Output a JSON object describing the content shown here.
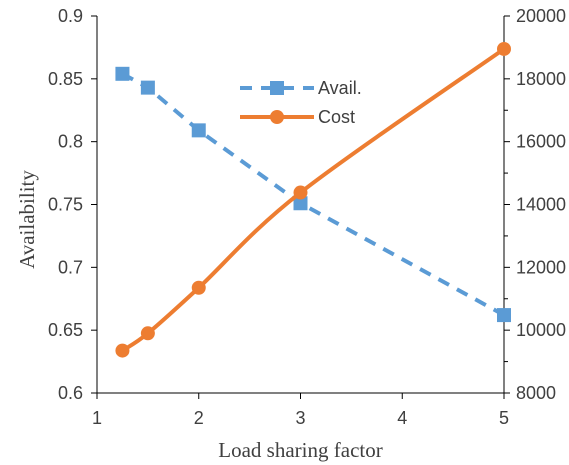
{
  "chart_data": {
    "type": "line",
    "xlabel": "Load sharing factor",
    "ylabel": "Availability",
    "ylabel_right": "",
    "x_ticks": [
      "1",
      "2",
      "3",
      "4",
      "5"
    ],
    "y_ticks": [
      "0.6",
      "0.65",
      "0.7",
      "0.75",
      "0.8",
      "0.85",
      "0.9"
    ],
    "y2_ticks": [
      "8000",
      "10000",
      "12000",
      "14000",
      "16000",
      "18000",
      "20000"
    ],
    "xlim": [
      1,
      5
    ],
    "ylim": [
      0.6,
      0.9
    ],
    "y2lim": [
      8000,
      20000
    ],
    "grid": false,
    "legend_position": "top-center",
    "series": [
      {
        "name": "Avail.",
        "axis": "left",
        "style": "dashed",
        "marker": "square",
        "color": "#5B9BD5",
        "x": [
          1.25,
          1.5,
          2,
          3,
          5
        ],
        "y": [
          0.854,
          0.843,
          0.809,
          0.751,
          0.662
        ]
      },
      {
        "name": "Cost",
        "axis": "right",
        "style": "solid",
        "marker": "circle",
        "color": "#ED7D31",
        "x": [
          1.25,
          1.5,
          2,
          3,
          5
        ],
        "y": [
          9350,
          9900,
          11350,
          14380,
          18950
        ]
      }
    ]
  }
}
